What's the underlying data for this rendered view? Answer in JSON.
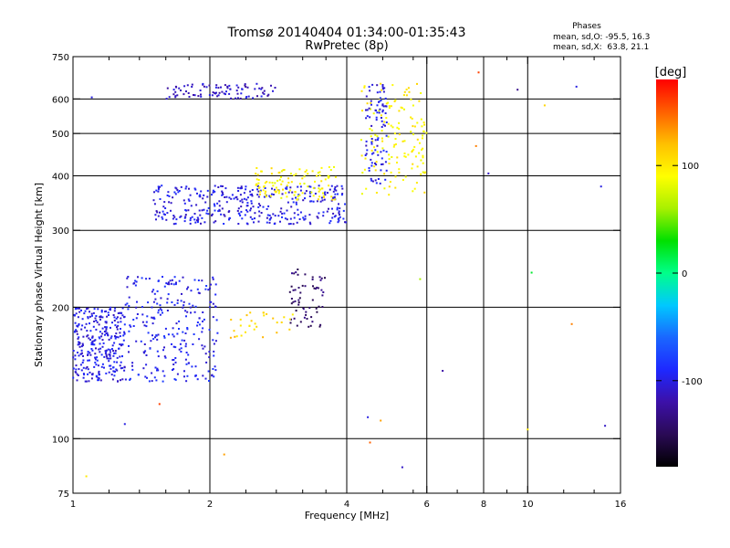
{
  "chart_data": {
    "type": "scatter",
    "title": "Tromsø 20140404 01:34:00-01:35:43",
    "subtitle": "RwPretec (8p)",
    "xlabel": "Frequency [MHz]",
    "ylabel": "Stationary phase Virtual Height [km]",
    "x_scale": "log",
    "y_scale": "log",
    "xlim": [
      1,
      16
    ],
    "ylim": [
      75,
      750
    ],
    "x_ticks": [
      1,
      2,
      4,
      6,
      8,
      10,
      16
    ],
    "x_tick_labels": [
      "1",
      "2",
      "4",
      "6",
      "8",
      "10",
      "16"
    ],
    "x_minor_ticks": [
      1.2,
      1.4,
      1.6,
      1.8,
      2.4,
      2.8,
      3.2,
      3.6,
      4.8,
      5.6,
      7,
      9,
      12,
      14
    ],
    "y_ticks": [
      75,
      100,
      200,
      300,
      400,
      500,
      600,
      750
    ],
    "y_tick_labels": [
      "75",
      "100",
      "200",
      "300",
      "400",
      "500",
      "600",
      "750"
    ],
    "x_grid": [
      2,
      4,
      6,
      8,
      10
    ],
    "y_grid": [
      100,
      200,
      300,
      400,
      500,
      600
    ],
    "grid": true,
    "info_box": {
      "heading": "Phases",
      "line1": "mean, sd,O: -95.5, 16.3",
      "line2": "mean, sd,X:  63.8, 21.1"
    },
    "colorbar": {
      "unit": "[deg]",
      "range": [
        -180,
        180
      ],
      "tick_values": [
        100,
        0,
        -100
      ],
      "tick_labels": [
        "100",
        "0",
        "-100"
      ],
      "colors": [
        "#000000",
        "#2a0a55",
        "#3c10a8",
        "#1e28ff",
        "#1a66ff",
        "#00c8ff",
        "#00ff8a",
        "#00e000",
        "#a8f000",
        "#ffff00",
        "#ffc000",
        "#ff6000",
        "#ff0000"
      ]
    },
    "traces": [
      {
        "name": "",
        "phase": -100,
        "count": 300,
        "x_range": [
          1.0,
          1.3
        ],
        "y_range": [
          135,
          200
        ]
      },
      {
        "name": "",
        "phase": -95,
        "count": 260,
        "x_range": [
          1.3,
          2.1
        ],
        "y_range": [
          135,
          235
        ]
      },
      {
        "name": "",
        "phase": -100,
        "count": 360,
        "x_range": [
          1.5,
          4.0
        ],
        "y_range": [
          310,
          380
        ]
      },
      {
        "name": "",
        "phase": -110,
        "count": 90,
        "x_range": [
          1.6,
          2.8
        ],
        "y_range": [
          600,
          650
        ]
      },
      {
        "name": "",
        "phase": -140,
        "count": 60,
        "x_range": [
          3.0,
          3.6
        ],
        "y_range": [
          180,
          245
        ]
      },
      {
        "name": "",
        "phase": 95,
        "count": 110,
        "x_range": [
          2.5,
          3.8
        ],
        "y_range": [
          350,
          420
        ]
      },
      {
        "name": "",
        "phase": 95,
        "count": 140,
        "x_range": [
          4.3,
          6.0
        ],
        "y_range": [
          360,
          650
        ]
      },
      {
        "name": "",
        "phase": -100,
        "count": 90,
        "x_range": [
          4.4,
          4.9
        ],
        "y_range": [
          380,
          650
        ]
      },
      {
        "name": "",
        "phase": 110,
        "count": 30,
        "x_range": [
          2.2,
          3.1
        ],
        "y_range": [
          170,
          195
        ]
      }
    ],
    "isolated_points": [
      {
        "x": 1.07,
        "y": 82,
        "phase": 100
      },
      {
        "x": 2.15,
        "y": 92,
        "phase": 130
      },
      {
        "x": 4.5,
        "y": 98,
        "phase": 150
      },
      {
        "x": 5.3,
        "y": 86,
        "phase": -110
      },
      {
        "x": 6.5,
        "y": 143,
        "phase": -120
      },
      {
        "x": 10.0,
        "y": 105,
        "phase": 100
      },
      {
        "x": 12.5,
        "y": 183,
        "phase": 140
      },
      {
        "x": 14.8,
        "y": 107,
        "phase": -110
      },
      {
        "x": 14.5,
        "y": 378,
        "phase": -100
      },
      {
        "x": 10.2,
        "y": 240,
        "phase": 20
      },
      {
        "x": 5.8,
        "y": 232,
        "phase": 60
      },
      {
        "x": 8.2,
        "y": 405,
        "phase": -110
      },
      {
        "x": 7.7,
        "y": 468,
        "phase": 140
      },
      {
        "x": 7.8,
        "y": 690,
        "phase": 160
      },
      {
        "x": 9.5,
        "y": 630,
        "phase": -130
      },
      {
        "x": 10.9,
        "y": 580,
        "phase": 110
      },
      {
        "x": 12.8,
        "y": 640,
        "phase": -100
      },
      {
        "x": 1.1,
        "y": 605,
        "phase": -100
      },
      {
        "x": 1.3,
        "y": 108,
        "phase": -100
      },
      {
        "x": 1.55,
        "y": 120,
        "phase": 160
      },
      {
        "x": 4.45,
        "y": 112,
        "phase": -100
      },
      {
        "x": 4.75,
        "y": 110,
        "phase": 130
      }
    ]
  }
}
